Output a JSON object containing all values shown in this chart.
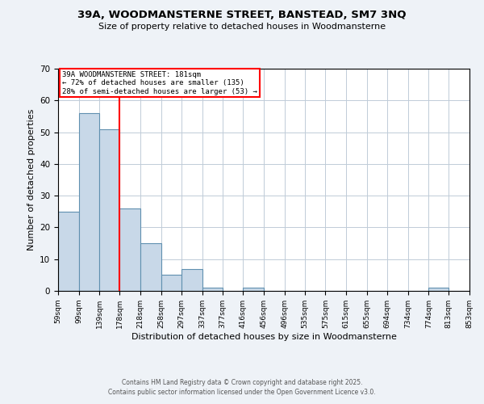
{
  "title": "39A, WOODMANSTERNE STREET, BANSTEAD, SM7 3NQ",
  "subtitle": "Size of property relative to detached houses in Woodmansterne",
  "xlabel": "Distribution of detached houses by size in Woodmansterne",
  "ylabel": "Number of detached properties",
  "bin_edges": [
    59,
    99,
    139,
    178,
    218,
    258,
    297,
    337,
    377,
    416,
    456,
    496,
    535,
    575,
    615,
    655,
    694,
    734,
    774,
    813,
    853
  ],
  "counts": [
    25,
    56,
    51,
    26,
    15,
    5,
    7,
    1,
    0,
    1,
    0,
    0,
    0,
    0,
    0,
    0,
    0,
    0,
    1,
    0
  ],
  "bar_color": "#c8d8e8",
  "bar_edge_color": "#6090b0",
  "vline_x": 178,
  "vline_color": "red",
  "annotation_box_text": "39A WOODMANSTERNE STREET: 181sqm\n← 72% of detached houses are smaller (135)\n28% of semi-detached houses are larger (53) →",
  "ylim": [
    0,
    70
  ],
  "yticks": [
    0,
    10,
    20,
    30,
    40,
    50,
    60,
    70
  ],
  "tick_labels": [
    "59sqm",
    "99sqm",
    "139sqm",
    "178sqm",
    "218sqm",
    "258sqm",
    "297sqm",
    "337sqm",
    "377sqm",
    "416sqm",
    "456sqm",
    "496sqm",
    "535sqm",
    "575sqm",
    "615sqm",
    "655sqm",
    "694sqm",
    "734sqm",
    "774sqm",
    "813sqm",
    "853sqm"
  ],
  "footer_line1": "Contains HM Land Registry data © Crown copyright and database right 2025.",
  "footer_line2": "Contains public sector information licensed under the Open Government Licence v3.0.",
  "background_color": "#eef2f7",
  "plot_bg_color": "#ffffff",
  "grid_color": "#c0ccd8"
}
